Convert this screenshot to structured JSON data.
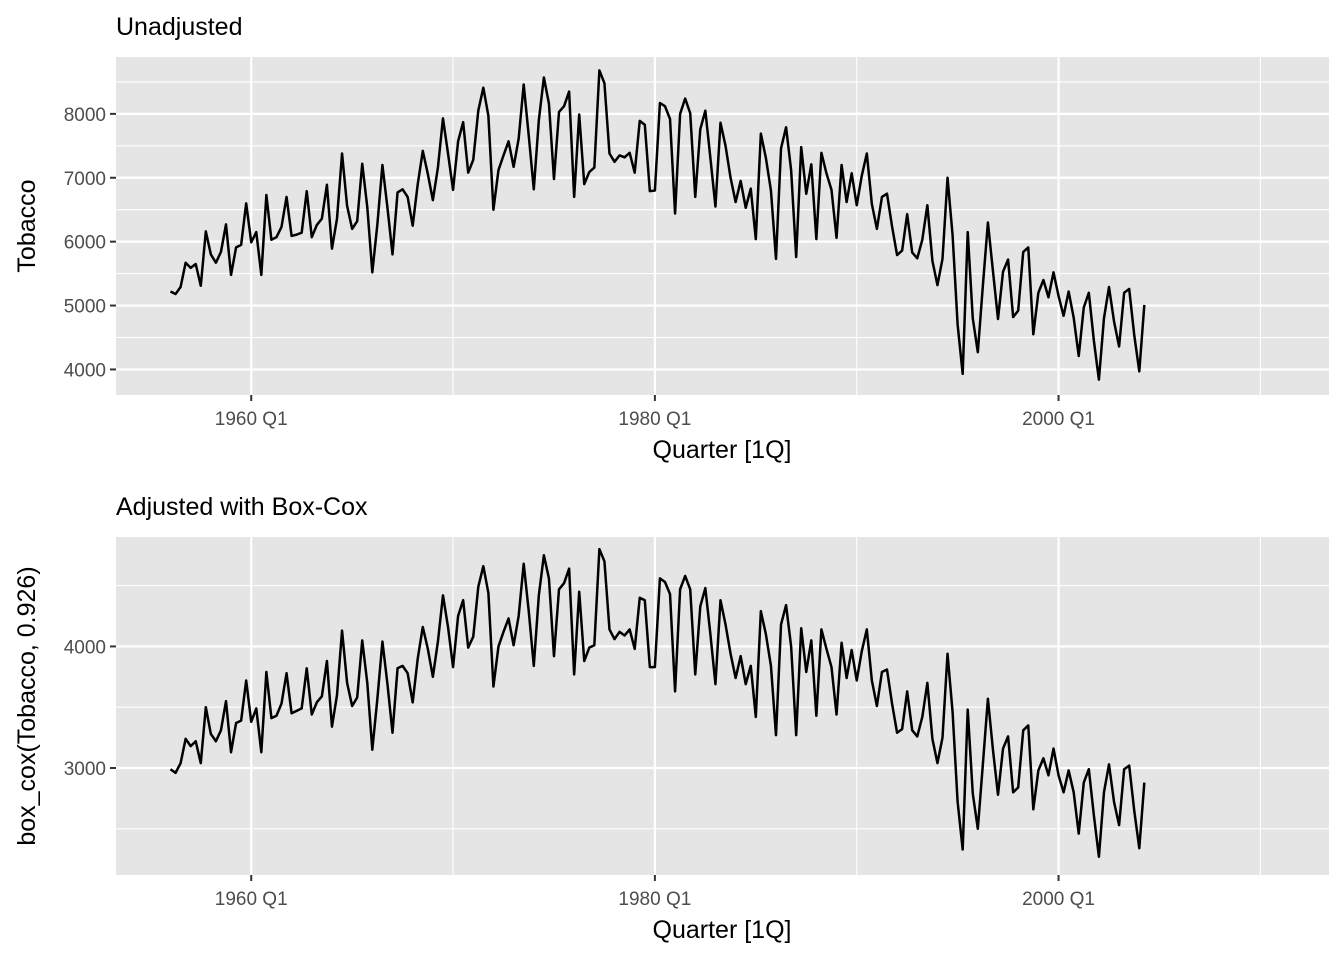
{
  "chart_data": [
    {
      "type": "line",
      "title": "Unadjusted",
      "xlabel": "Quarter [1Q]",
      "ylabel": "Tobacco",
      "x_tick_labels": [
        "1960 Q1",
        "1980 Q1",
        "2000 Q1"
      ],
      "x_tick_years": [
        1960,
        1980,
        2000
      ],
      "y_ticks": [
        4000,
        5000,
        6000,
        7000,
        8000
      ],
      "y_tick_labels": [
        "4000",
        "5000",
        "6000",
        "7000",
        "8000"
      ],
      "xlim": [
        1953.3,
        2013.4
      ],
      "ylim": [
        3600,
        8890
      ],
      "x_start": "1956 Q1",
      "x_end": "2004 Q1",
      "grid": true,
      "legend": "none",
      "values": [
        5220,
        5180,
        5290,
        5670,
        5590,
        5650,
        5310,
        6160,
        5800,
        5670,
        5840,
        6270,
        5480,
        5910,
        5950,
        6600,
        5990,
        6150,
        5480,
        6730,
        6030,
        6070,
        6230,
        6700,
        6090,
        6110,
        6140,
        6790,
        6070,
        6260,
        6360,
        6890,
        5890,
        6360,
        7380,
        6560,
        6200,
        6320,
        7220,
        6540,
        5520,
        6270,
        7200,
        6530,
        5800,
        6770,
        6820,
        6700,
        6250,
        6900,
        7420,
        7060,
        6650,
        7160,
        7930,
        7380,
        6810,
        7570,
        7870,
        7080,
        7280,
        8050,
        8410,
        7970,
        6500,
        7120,
        7350,
        7570,
        7170,
        7610,
        8460,
        7660,
        6820,
        7900,
        8570,
        8160,
        6980,
        8030,
        8120,
        8350,
        6700,
        7990,
        6900,
        7090,
        7160,
        8680,
        8480,
        7380,
        7250,
        7350,
        7320,
        7390,
        7080,
        7890,
        7830,
        6790,
        6800,
        8170,
        8120,
        7920,
        6440,
        8000,
        8240,
        8010,
        6700,
        7760,
        8050,
        7310,
        6550,
        7860,
        7500,
        7000,
        6620,
        6950,
        6530,
        6830,
        6040,
        7690,
        7310,
        6800,
        5730,
        7460,
        7790,
        7120,
        5760,
        7480,
        6750,
        7210,
        6040,
        7390,
        7070,
        6810,
        6060,
        7200,
        6620,
        7070,
        6570,
        7030,
        7380,
        6590,
        6200,
        6700,
        6750,
        6240,
        5790,
        5860,
        6430,
        5830,
        5740,
        6030,
        6570,
        5700,
        5320,
        5730,
        7000,
        6100,
        4700,
        3930,
        6150,
        4800,
        4270,
        5310,
        6300,
        5540,
        4790,
        5530,
        5720,
        4820,
        4920,
        5840,
        5910,
        4550,
        5200,
        5400,
        5130,
        5520,
        5150,
        4840,
        5220,
        4810,
        4210,
        4970,
        5200,
        4450,
        3840,
        4800,
        5290,
        4750,
        4360,
        5200,
        5260,
        4540,
        3970,
        5010
      ]
    },
    {
      "type": "line",
      "title": "Adjusted with Box-Cox",
      "xlabel": "Quarter [1Q]",
      "ylabel": "box_cox(Tobacco, 0.926)",
      "x_tick_labels": [
        "1960 Q1",
        "1980 Q1",
        "2000 Q1"
      ],
      "x_tick_years": [
        1960,
        1980,
        2000
      ],
      "y_ticks": [
        3000,
        4000
      ],
      "y_tick_labels": [
        "3000",
        "4000"
      ],
      "xlim": [
        1953.3,
        2013.4
      ],
      "ylim": [
        2120,
        4900
      ],
      "x_start": "1956 Q1",
      "x_end": "2004 Q1",
      "grid": true,
      "legend": "none",
      "values": [
        2990,
        2960,
        3040,
        3240,
        3180,
        3220,
        3040,
        3500,
        3280,
        3220,
        3310,
        3550,
        3130,
        3370,
        3390,
        3720,
        3380,
        3490,
        3130,
        3790,
        3410,
        3430,
        3530,
        3780,
        3450,
        3470,
        3490,
        3820,
        3440,
        3540,
        3590,
        3880,
        3340,
        3600,
        4130,
        3700,
        3510,
        3580,
        4050,
        3700,
        3150,
        3570,
        4040,
        3690,
        3290,
        3820,
        3840,
        3780,
        3540,
        3900,
        4160,
        3980,
        3750,
        4040,
        4420,
        4160,
        3830,
        4250,
        4380,
        3990,
        4080,
        4490,
        4660,
        4440,
        3670,
        4000,
        4120,
        4230,
        4010,
        4250,
        4680,
        4290,
        3840,
        4420,
        4750,
        4560,
        3920,
        4470,
        4520,
        4640,
        3770,
        4450,
        3880,
        3990,
        4010,
        4800,
        4700,
        4140,
        4060,
        4120,
        4090,
        4140,
        3980,
        4400,
        4380,
        3830,
        3830,
        4560,
        4530,
        4430,
        3630,
        4470,
        4580,
        4470,
        3770,
        4330,
        4480,
        4100,
        3690,
        4380,
        4180,
        3940,
        3740,
        3920,
        3690,
        3840,
        3420,
        4290,
        4100,
        3840,
        3270,
        4180,
        4340,
        4000,
        3270,
        4150,
        3790,
        4050,
        3430,
        4140,
        3980,
        3830,
        3440,
        4030,
        3740,
        3970,
        3720,
        3960,
        4140,
        3720,
        3510,
        3790,
        3810,
        3530,
        3290,
        3320,
        3630,
        3310,
        3260,
        3420,
        3700,
        3240,
        3040,
        3250,
        3940,
        3460,
        2720,
        2330,
        3480,
        2790,
        2500,
        3030,
        3570,
        3150,
        2780,
        3160,
        3260,
        2800,
        2840,
        3310,
        3350,
        2660,
        2980,
        3080,
        2940,
        3160,
        2940,
        2800,
        2980,
        2800,
        2460,
        2880,
        2990,
        2610,
        2270,
        2800,
        3030,
        2720,
        2530,
        2990,
        3020,
        2650,
        2340,
        2880
      ]
    }
  ]
}
